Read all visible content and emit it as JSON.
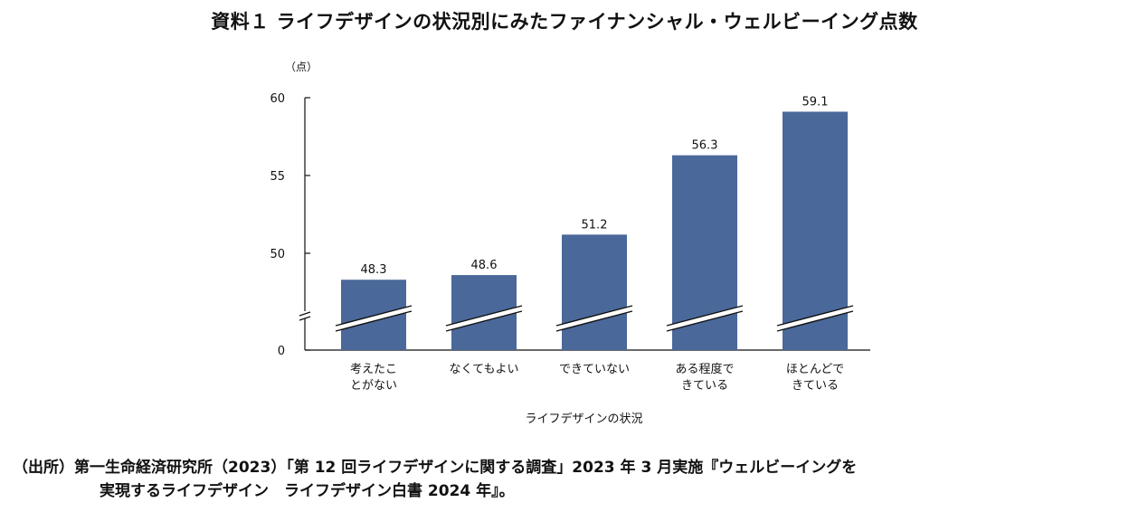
{
  "chart_data": {
    "type": "bar",
    "title": "資料１ ライフデザインの状況別にみたファイナンシャル・ウェルビーイング点数",
    "ylabel": "（点）",
    "xlabel": "ライフデザインの状況",
    "categories": [
      [
        "考えたこ",
        "とがない"
      ],
      [
        "なくてもよい"
      ],
      [
        "できていない"
      ],
      [
        "ある程度で",
        "きている"
      ],
      [
        "ほとんどで",
        "きている"
      ]
    ],
    "values": [
      48.3,
      48.6,
      51.2,
      56.3,
      59.1
    ],
    "value_labels": [
      "48.3",
      "48.6",
      "51.2",
      "56.3",
      "59.1"
    ],
    "ylim": [
      45,
      60
    ],
    "yticks": [
      0,
      50,
      55,
      60
    ],
    "axis_break": true,
    "bar_color": "#4a6899"
  },
  "source": {
    "line1": "（出所）第一生命経済研究所（2023）「第 12 回ライフデザインに関する調査」2023 年 3 月実施『ウェルビーイングを",
    "line2": "実現するライフデザイン　ライフデザイン白書 2024 年』。"
  }
}
